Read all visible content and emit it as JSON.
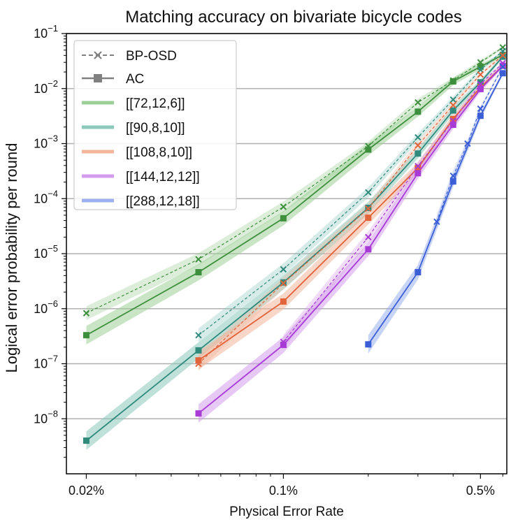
{
  "chart_data": {
    "type": "line",
    "title": "Matching accuracy on bivariate bicycle codes",
    "xlabel": "Physical Error Rate",
    "ylabel": "Logical error probability per round",
    "x_scale": "log",
    "y_scale": "log",
    "xlim": [
      0.00017,
      0.0062
    ],
    "ylim": [
      1e-09,
      0.1
    ],
    "x_ticks": [
      {
        "value": 0.0002,
        "label": "0.02%"
      },
      {
        "value": 0.001,
        "label": "0.1%"
      },
      {
        "value": 0.005,
        "label": "0.5%"
      }
    ],
    "y_ticks": [
      {
        "value": 1e-08,
        "base": "10",
        "exp": "−8"
      },
      {
        "value": 1e-07,
        "base": "10",
        "exp": "−7"
      },
      {
        "value": 1e-06,
        "base": "10",
        "exp": "−6"
      },
      {
        "value": 1e-05,
        "base": "10",
        "exp": "−5"
      },
      {
        "value": 0.0001,
        "base": "10",
        "exp": "−4"
      },
      {
        "value": 0.001,
        "base": "10",
        "exp": "−3"
      },
      {
        "value": 0.01,
        "base": "10",
        "exp": "−2"
      },
      {
        "value": 0.1,
        "base": "10",
        "exp": "−1"
      }
    ],
    "grid": "horizontal major",
    "legend": {
      "placement": "top-left",
      "style_entries": [
        {
          "label": "BP-OSD",
          "style": "dashed-x"
        },
        {
          "label": "AC",
          "style": "solid-square"
        }
      ],
      "code_entries": [
        "[[72,12,6]]",
        "[[90,8,10]]",
        "[[108,8,10]]",
        "[[144,12,12]]",
        "[[288,12,18]]"
      ]
    },
    "series": [
      {
        "name": "[[72,12,6]]",
        "color": "#3d8f3d",
        "light": "#9ccf95",
        "ac": {
          "x": [
            0.0002,
            0.0005,
            0.001,
            0.002,
            0.003,
            0.004,
            0.005,
            0.006
          ],
          "y": [
            3.3e-07,
            4.6e-06,
            4.4e-05,
            0.00078,
            0.0038,
            0.0135,
            0.025,
            0.041
          ]
        },
        "bposd": {
          "x": [
            0.0002,
            0.0005,
            0.001,
            0.002,
            0.003,
            0.004,
            0.005,
            0.006
          ],
          "y": [
            8.3e-07,
            7.9e-06,
            7.1e-05,
            0.0009,
            0.0056,
            0.014,
            0.03,
            0.056
          ]
        }
      },
      {
        "name": "[[90,8,10]]",
        "color": "#2f8a7c",
        "light": "#8cc8bc",
        "ac": {
          "x": [
            0.0002,
            0.0005,
            0.001,
            0.002,
            0.003,
            0.004,
            0.005,
            0.006
          ],
          "y": [
            4e-09,
            1.75e-07,
            3e-06,
            6.8e-05,
            0.00066,
            0.004,
            0.013,
            0.038
          ]
        },
        "bposd": {
          "x": [
            0.0005,
            0.001,
            0.002,
            0.003,
            0.004,
            0.005,
            0.006
          ],
          "y": [
            3.3e-07,
            5.2e-06,
            0.00013,
            0.0013,
            0.0063,
            0.022,
            0.048
          ]
        }
      },
      {
        "name": "[[108,8,10]]",
        "color": "#e2643a",
        "light": "#f2b59a",
        "ac": {
          "x": [
            0.0005,
            0.001,
            0.002,
            0.003,
            0.004,
            0.005,
            0.006
          ],
          "y": [
            1.15e-07,
            1.35e-06,
            4.5e-05,
            0.00036,
            0.0028,
            0.0105,
            0.026
          ]
        },
        "bposd": {
          "x": [
            0.0005,
            0.001,
            0.002,
            0.003,
            0.004,
            0.005,
            0.006
          ],
          "y": [
            1e-07,
            2.9e-06,
            6.6e-05,
            0.00093,
            0.005,
            0.018,
            0.04
          ]
        }
      },
      {
        "name": "[[144,12,12]]",
        "color": "#a83ad6",
        "light": "#d49cec",
        "ac": {
          "x": [
            0.0005,
            0.001,
            0.002,
            0.003,
            0.004,
            0.005,
            0.006
          ],
          "y": [
            1.25e-08,
            2.2e-07,
            1.2e-05,
            0.00029,
            0.0022,
            0.0098,
            0.026
          ]
        },
        "bposd": {
          "x": [
            0.001,
            0.002,
            0.003,
            0.004,
            0.005,
            0.006
          ],
          "y": [
            2.5e-07,
            2e-05,
            0.00039,
            0.0026,
            0.012,
            0.029
          ]
        }
      },
      {
        "name": "[[288,12,18]]",
        "color": "#3b5ed6",
        "light": "#9bb0ec",
        "ac": {
          "x": [
            0.002,
            0.003,
            0.004,
            0.005,
            0.006
          ],
          "y": [
            2.25e-07,
            4.6e-06,
            0.000205,
            0.0032,
            0.019
          ]
        },
        "bposd": {
          "x": [
            0.0035,
            0.004,
            0.0045,
            0.005,
            0.006
          ],
          "y": [
            3.8e-05,
            0.00026,
            0.001,
            0.0043,
            0.025
          ]
        }
      }
    ]
  }
}
